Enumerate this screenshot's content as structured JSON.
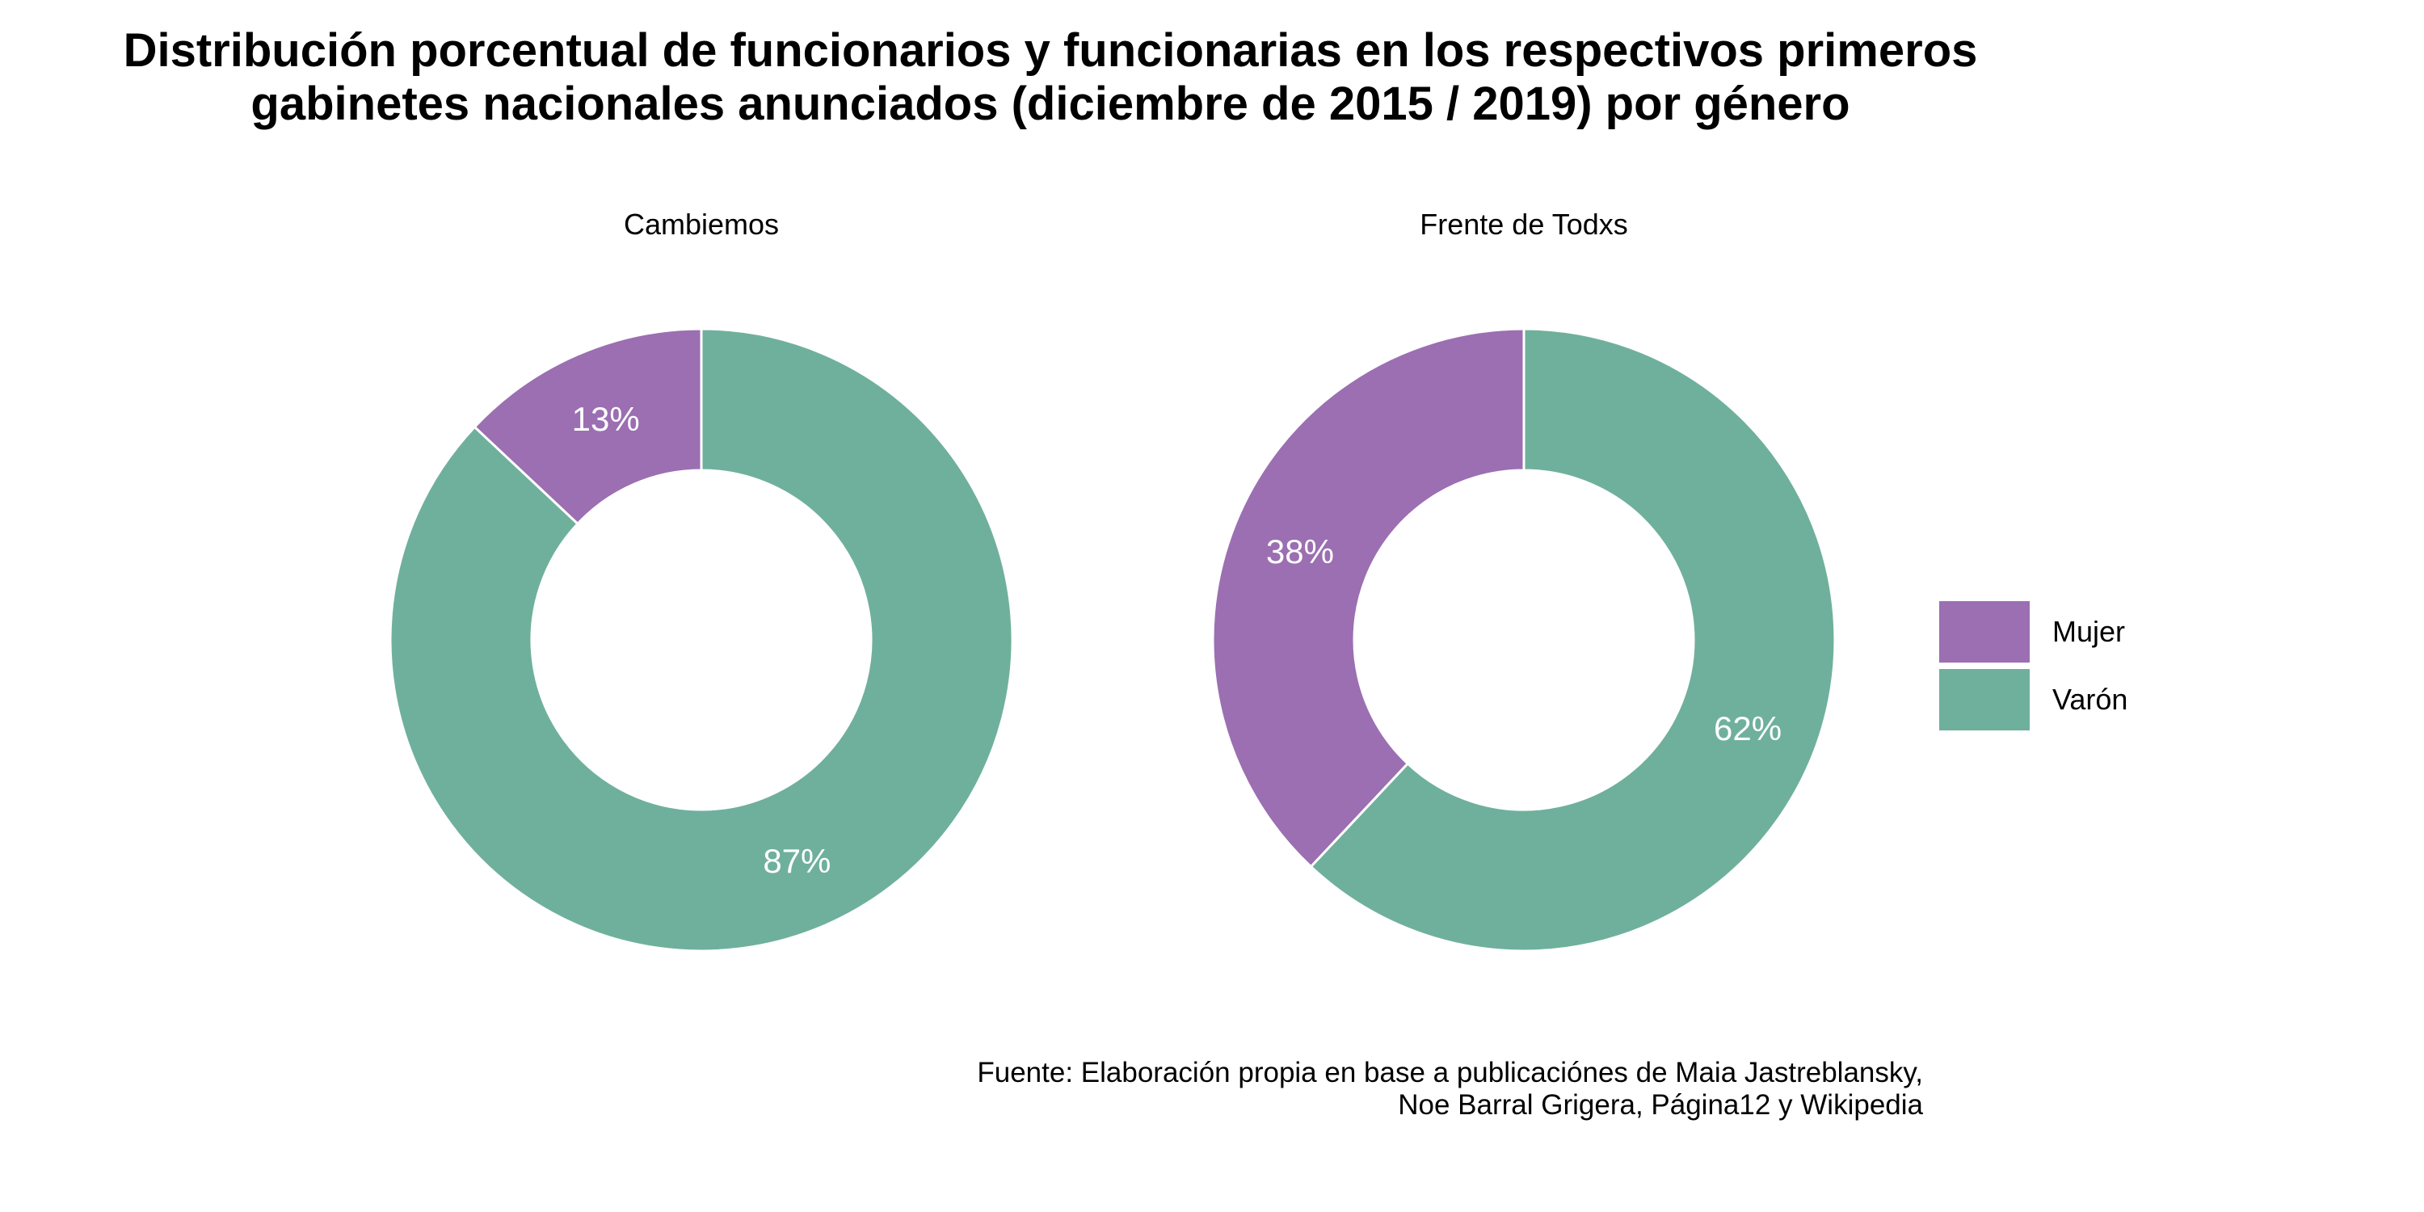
{
  "chart_data": {
    "type": "pie",
    "variant": "donut",
    "title_lines": [
      "Distribución porcentual de funcionarios y funcionarias en los respectivos primeros",
      "gabinetes nacionales anunciados (diciembre de 2015 / 2019) por género"
    ],
    "caption_lines": [
      "Fuente: Elaboración propia en base a publicaciónes de Maia Jastreblansky,",
      "Noe Barral Grigera, Página12 y Wikipedia"
    ],
    "categories": [
      "Mujer",
      "Varón"
    ],
    "colors": [
      "#9b6fb2",
      "#6fb09c"
    ],
    "legend_position": "right",
    "facets": [
      {
        "name": "Cambiemos",
        "values": [
          13,
          87
        ],
        "labels": [
          "13%",
          "87%"
        ]
      },
      {
        "name": "Frente de Todxs",
        "values": [
          38,
          62
        ],
        "labels": [
          "38%",
          "62%"
        ]
      }
    ]
  }
}
